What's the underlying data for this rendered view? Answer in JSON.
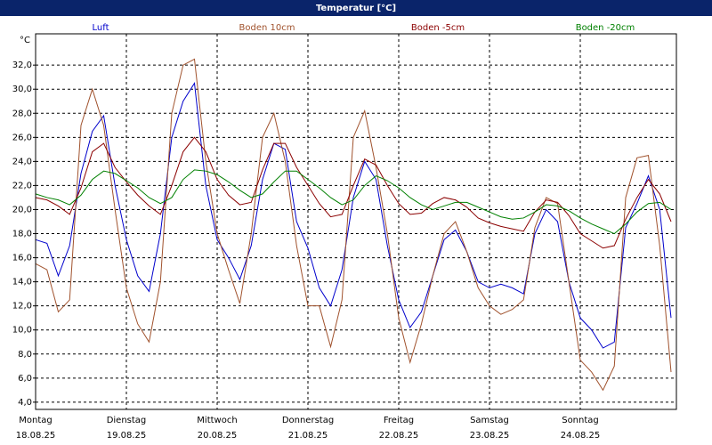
{
  "chart_data": {
    "type": "line",
    "title": "Temperatur [°C]",
    "y_label": "°C",
    "categories": [
      "Montag",
      null,
      null,
      null,
      null,
      null,
      null,
      null,
      "Dienstag",
      null,
      null,
      null,
      null,
      null,
      null,
      null,
      "Mittwoch",
      null,
      null,
      null,
      null,
      null,
      null,
      null,
      "Donnerstag",
      null,
      null,
      null,
      null,
      null,
      null,
      null,
      "Freitag",
      null,
      null,
      null,
      null,
      null,
      null,
      null,
      "Samstag",
      null,
      null,
      null,
      null,
      null,
      null,
      null,
      "Sonntag",
      null,
      null,
      null,
      null,
      null,
      null,
      null,
      null
    ],
    "dates": [
      "18.08.25",
      null,
      null,
      null,
      null,
      null,
      null,
      null,
      "19.08.25",
      null,
      null,
      null,
      null,
      null,
      null,
      null,
      "20.08.25",
      null,
      null,
      null,
      null,
      null,
      null,
      null,
      "21.08.25",
      null,
      null,
      null,
      null,
      null,
      null,
      null,
      "22.08.25",
      null,
      null,
      null,
      null,
      null,
      null,
      null,
      "23.08.25",
      null,
      null,
      null,
      null,
      null,
      null,
      null,
      "24.08.25",
      null,
      null,
      null,
      null,
      null,
      null,
      null,
      null
    ],
    "series": [
      {
        "name": "Luft",
        "color": "#0000cc",
        "values": [
          17.5,
          17.2,
          14.5,
          17,
          23,
          26.5,
          27.8,
          22,
          17.5,
          14.5,
          13.2,
          18,
          26,
          29,
          30.5,
          22,
          17.5,
          16,
          14.2,
          17,
          22.5,
          25.5,
          25,
          19,
          16.8,
          13.5,
          12,
          15,
          21,
          24,
          22.5,
          17,
          12.5,
          10.2,
          11.5,
          14.5,
          17.5,
          18.3,
          16.5,
          14,
          13.5,
          13.8,
          13.5,
          13,
          18,
          20,
          19,
          14,
          11,
          10,
          8.5,
          9,
          18.5,
          20.5,
          22.8,
          20,
          11
        ]
      },
      {
        "name": "Boden 10cm",
        "color": "#a0522d",
        "values": [
          15.5,
          15,
          11.5,
          12.5,
          27,
          30,
          27,
          20,
          13.5,
          10.5,
          9,
          14,
          28,
          32,
          32.5,
          24,
          18,
          15,
          12.2,
          18,
          26,
          28,
          24,
          17,
          12,
          12,
          8.6,
          12.5,
          26,
          28.2,
          23.5,
          18,
          11,
          7.3,
          10.5,
          14.5,
          18,
          19,
          16.5,
          13.5,
          12,
          11.3,
          11.7,
          12.5,
          18.5,
          21,
          20.5,
          14,
          7.5,
          6.5,
          5,
          7,
          21,
          24.3,
          24.5,
          17,
          6.5
        ]
      },
      {
        "name": "Boden -5cm",
        "color": "#8b0000",
        "values": [
          21,
          20.8,
          20.3,
          19.6,
          21.8,
          24.8,
          25.5,
          23.5,
          22.3,
          21.2,
          20.3,
          19.6,
          22,
          24.8,
          26,
          24.8,
          22.5,
          21.2,
          20.4,
          20.6,
          23.3,
          25.5,
          25.5,
          23.5,
          22,
          20.5,
          19.4,
          19.6,
          22,
          24.2,
          23.7,
          22,
          20.5,
          19.6,
          19.7,
          20.5,
          21,
          20.8,
          20.2,
          19.3,
          18.9,
          18.6,
          18.4,
          18.2,
          19.8,
          20.8,
          20.6,
          19.5,
          18,
          17.4,
          16.8,
          17,
          19.2,
          21,
          22.5,
          21.3,
          19
        ]
      },
      {
        "name": "Boden -20cm",
        "color": "#008000",
        "values": [
          21.3,
          21,
          20.8,
          20.4,
          21.2,
          22.5,
          23.2,
          23,
          22.4,
          21.8,
          21,
          20.5,
          21,
          22.5,
          23.3,
          23.2,
          22.9,
          22.3,
          21.6,
          21,
          21.3,
          22.3,
          23.2,
          23.2,
          22.5,
          21.8,
          21,
          20.4,
          20.8,
          22,
          22.8,
          22.4,
          21.8,
          21,
          20.4,
          20,
          20.3,
          20.6,
          20.6,
          20.2,
          19.8,
          19.4,
          19.2,
          19.3,
          19.8,
          20.4,
          20.3,
          19.9,
          19.3,
          18.8,
          18.4,
          18,
          18.8,
          19.8,
          20.5,
          20.6,
          20
        ]
      }
    ],
    "ylim": [
      3.4,
      34.6
    ],
    "yticks": [
      {
        "value": 4,
        "label": "4,0"
      },
      {
        "value": 6,
        "label": "6,0"
      },
      {
        "value": 8,
        "label": "8,0"
      },
      {
        "value": 10,
        "label": "10,0"
      },
      {
        "value": 12,
        "label": "12,0"
      },
      {
        "value": 14,
        "label": "14,0"
      },
      {
        "value": 16,
        "label": "16,0"
      },
      {
        "value": 18,
        "label": "18,0"
      },
      {
        "value": 20,
        "label": "20,0"
      },
      {
        "value": 22,
        "label": "22,0"
      },
      {
        "value": 24,
        "label": "24,0"
      },
      {
        "value": 26,
        "label": "26,0"
      },
      {
        "value": 28,
        "label": "28,0"
      },
      {
        "value": 30,
        "label": "30,0"
      },
      {
        "value": 32,
        "label": "32,0"
      }
    ],
    "grid": true
  }
}
